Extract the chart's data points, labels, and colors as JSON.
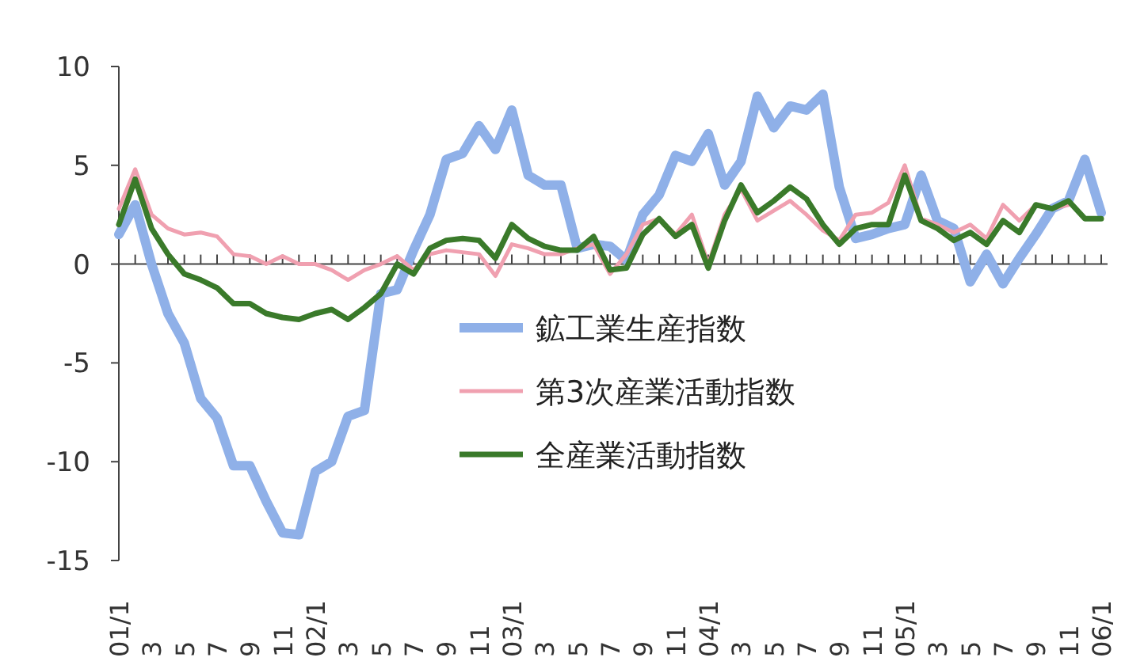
{
  "chart_data": {
    "type": "line",
    "categories": [
      "01/1",
      null,
      "3",
      null,
      "5",
      null,
      "7",
      null,
      "9",
      null,
      "11",
      null,
      "02/1",
      null,
      "3",
      null,
      "5",
      null,
      "7",
      null,
      "9",
      null,
      "11",
      null,
      "03/1",
      null,
      "3",
      null,
      "5",
      null,
      "7",
      null,
      "9",
      null,
      "11",
      null,
      "04/1",
      null,
      "3",
      null,
      "5",
      null,
      "7",
      null,
      "9",
      null,
      "11",
      null,
      "05/1",
      null,
      "3",
      null,
      "5",
      null,
      "7",
      null,
      "9",
      null,
      "11",
      null,
      "06/1"
    ],
    "series": [
      {
        "name": "鉱工業生産指数",
        "color": "#8fb0e8",
        "values": [
          1.5,
          3,
          0,
          -2.5,
          -4,
          -6.8,
          -7.8,
          -10.2,
          -10.2,
          -12,
          -13.6,
          -13.7,
          -10.5,
          -10,
          -7.7,
          -7.4,
          -1.5,
          -1.3,
          0.7,
          2.5,
          5.3,
          5.6,
          7,
          5.8,
          7.8,
          4.5,
          4,
          4,
          0.8,
          1,
          0.9,
          0.2,
          2.5,
          3.5,
          5.5,
          5.2,
          6.6,
          4,
          5.2,
          8.5,
          6.9,
          8,
          7.8,
          8.6,
          3.9,
          1.3,
          1.5,
          1.8,
          2,
          4.5,
          2.2,
          1.8,
          -0.9,
          0.5,
          -1,
          0.3,
          1.5,
          2.8,
          3.2,
          5.3,
          2.6
        ]
      },
      {
        "name": "第3次産業活動指数",
        "color": "#f0a0b0",
        "values": [
          2.8,
          4.8,
          2.5,
          1.8,
          1.5,
          1.6,
          1.4,
          0.5,
          0.4,
          0,
          0.4,
          0,
          0,
          -0.3,
          -0.8,
          -0.3,
          0,
          0.4,
          -0.3,
          0.5,
          0.7,
          0.6,
          0.5,
          -0.6,
          1,
          0.8,
          0.5,
          0.5,
          0.8,
          1,
          -0.5,
          0.5,
          2,
          2.3,
          1.5,
          2.5,
          0,
          2.5,
          3.8,
          2.2,
          2.7,
          3.2,
          2.5,
          1.7,
          1.2,
          2.5,
          2.6,
          3.1,
          5,
          2.3,
          2,
          1.6,
          2,
          1.3,
          3,
          2.2,
          3,
          2.8,
          3,
          null,
          null
        ]
      },
      {
        "name": "全産業活動指数",
        "color": "#3a7a2a",
        "values": [
          2,
          4.3,
          1.8,
          0.5,
          -0.5,
          -0.8,
          -1.2,
          -2,
          -2,
          -2.5,
          -2.7,
          -2.8,
          -2.5,
          -2.3,
          -2.8,
          -2.2,
          -1.5,
          0,
          -0.5,
          0.8,
          1.2,
          1.3,
          1.2,
          0.3,
          2,
          1.3,
          0.9,
          0.7,
          0.7,
          1.4,
          -0.3,
          -0.2,
          1.5,
          2.3,
          1.4,
          2,
          -0.2,
          2.2,
          4,
          2.6,
          3.2,
          3.9,
          3.3,
          2,
          1,
          1.8,
          2,
          2,
          4.5,
          2.2,
          1.8,
          1.2,
          1.6,
          1,
          2.2,
          1.6,
          3,
          2.8,
          3.2,
          2.3,
          2.3
        ]
      }
    ],
    "ylim": [
      -15,
      10
    ],
    "yticks": [
      10,
      5,
      0,
      -5,
      -10,
      -15
    ],
    "legend": "bottom"
  }
}
